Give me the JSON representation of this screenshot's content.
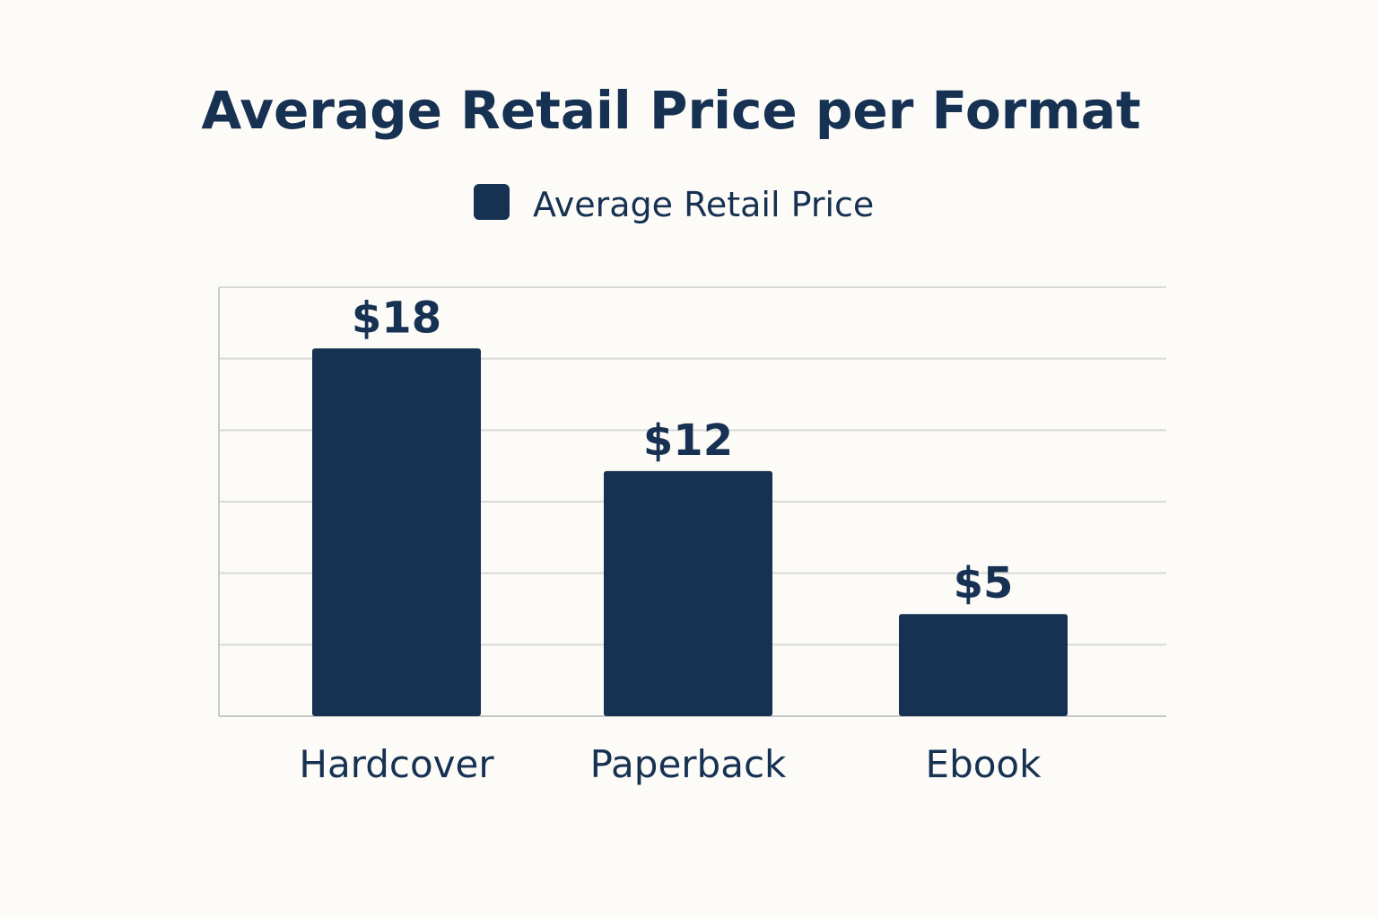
{
  "colors": {
    "background": "#fcfbf7",
    "bar": "#163152",
    "text": "#163152",
    "grid": "#d9d9d9",
    "axis": "#c8c8c8"
  },
  "chart_data": {
    "type": "bar",
    "title": "Average Retail Price per Format",
    "xlabel": "",
    "ylabel": "",
    "categories": [
      "Hardcover",
      "Paperback",
      "Ebook"
    ],
    "series": [
      {
        "name": "Average Retail Price",
        "values": [
          18,
          12,
          5
        ],
        "value_labels": [
          "$18",
          "$12",
          "$5"
        ]
      }
    ],
    "ylim": [
      0,
      21
    ],
    "grid": true,
    "legend": "top-center",
    "y_tick_labels_shown": false
  }
}
